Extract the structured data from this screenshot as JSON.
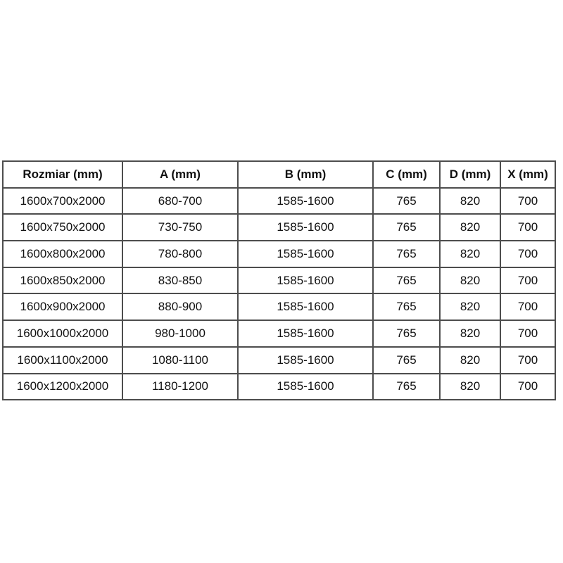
{
  "style": {
    "background": "#ffffff",
    "border_color": "#4d4d4d",
    "text_color": "#111111"
  },
  "chart_data": {
    "type": "table",
    "columns": [
      "Rozmiar (mm)",
      "A (mm)",
      "B (mm)",
      "C (mm)",
      "D (mm)",
      "X (mm)"
    ],
    "rows": [
      [
        "1600x700x2000",
        "680-700",
        "1585-1600",
        "765",
        "820",
        "700"
      ],
      [
        "1600x750x2000",
        "730-750",
        "1585-1600",
        "765",
        "820",
        "700"
      ],
      [
        "1600x800x2000",
        "780-800",
        "1585-1600",
        "765",
        "820",
        "700"
      ],
      [
        "1600x850x2000",
        "830-850",
        "1585-1600",
        "765",
        "820",
        "700"
      ],
      [
        "1600x900x2000",
        "880-900",
        "1585-1600",
        "765",
        "820",
        "700"
      ],
      [
        "1600x1000x2000",
        "980-1000",
        "1585-1600",
        "765",
        "820",
        "700"
      ],
      [
        "1600x1100x2000",
        "1080-1100",
        "1585-1600",
        "765",
        "820",
        "700"
      ],
      [
        "1600x1200x2000",
        "1180-1200",
        "1585-1600",
        "765",
        "820",
        "700"
      ]
    ],
    "legend": null,
    "grid": true
  }
}
